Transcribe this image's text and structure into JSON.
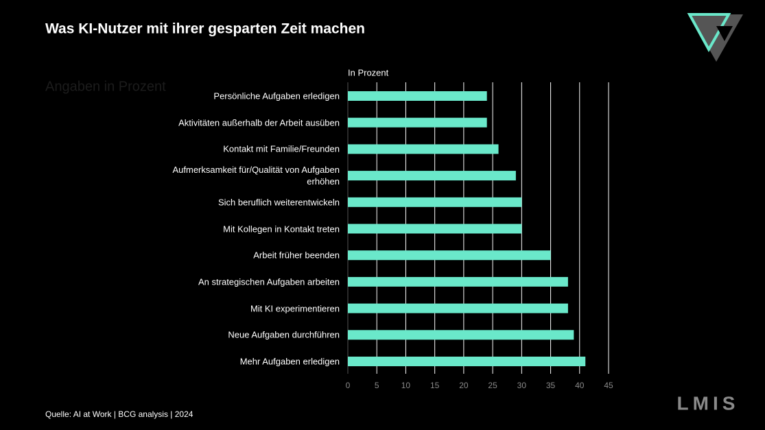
{
  "chart_data": {
    "type": "bar",
    "orientation": "horizontal",
    "title": "Was KI-Nutzer mit ihrer gesparten Zeit machen",
    "subtitle": "Angaben in Prozent",
    "axis_label": "In Prozent",
    "categories": [
      "Persönliche Aufgaben erledigen",
      "Aktivitäten außerhalb der Arbeit ausüben",
      "Kontakt mit Familie/Freunden",
      "Aufmerksamkeit für/Qualität von Aufgaben erhöhen",
      "Sich beruflich weiterentwickeln",
      "Mit Kollegen in Kontakt treten",
      "Arbeit früher beenden",
      "An strategischen Aufgaben arbeiten",
      "Mit KI experimentieren",
      "Neue Aufgaben durchführen",
      "Mehr Aufgaben erledigen"
    ],
    "values": [
      24,
      24,
      26,
      29,
      30,
      30,
      35,
      38,
      38,
      39,
      41
    ],
    "color": "#6ae8ca",
    "xlim": [
      0,
      45
    ],
    "xticks": [
      0,
      5,
      10,
      15,
      20,
      25,
      30,
      35,
      40,
      45
    ],
    "grid": true,
    "source": "Quelle: AI at Work | BCG analysis | 2024",
    "logo_text": "LMIS"
  }
}
